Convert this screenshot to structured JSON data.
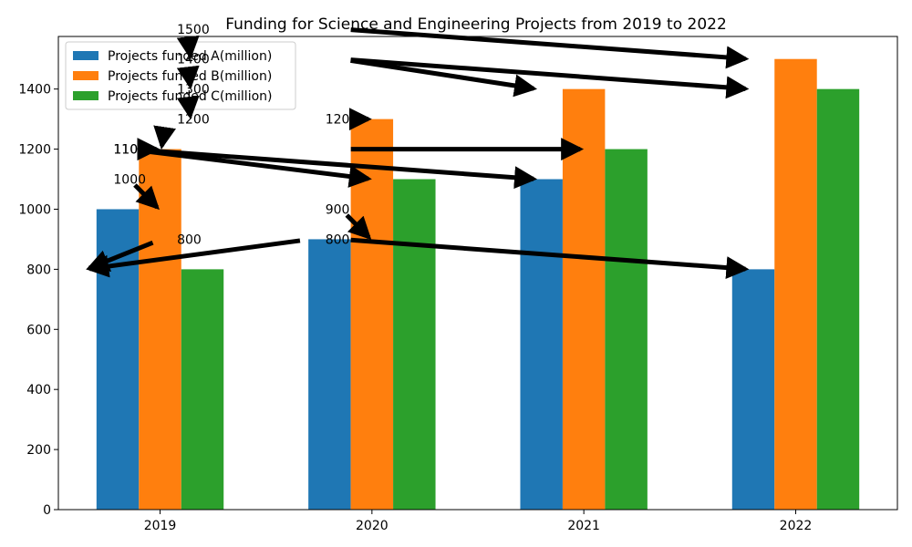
{
  "chart_data": {
    "type": "bar",
    "title": "Funding for Science and Engineering Projects from 2019 to 2022",
    "xlabel": "",
    "ylabel": "",
    "categories": [
      "2019",
      "2020",
      "2021",
      "2022"
    ],
    "series": [
      {
        "name": "Projects funded A(million)",
        "values": [
          1000,
          900,
          1100,
          800
        ],
        "color": "#1f77b4"
      },
      {
        "name": "Projects funded B(million)",
        "values": [
          1200,
          1300,
          1400,
          1500
        ],
        "color": "#ff7f0e"
      },
      {
        "name": "Projects funded C(million)",
        "values": [
          800,
          1100,
          1200,
          1400
        ],
        "color": "#2ca02c"
      }
    ],
    "ylim": [
      0,
      1575
    ],
    "yticks": [
      0,
      200,
      400,
      600,
      800,
      1000,
      1200,
      1400
    ],
    "grid": false,
    "legend_position": "top-left",
    "annotations": [
      {
        "label": "800",
        "label_at": [
          0.08,
          900
        ],
        "arrow_to": [
          -0.35,
          800
        ]
      },
      {
        "label": "1000",
        "label_at": [
          -0.22,
          1100
        ],
        "arrow_to": [
          0.0,
          1000
        ]
      },
      {
        "label": "1100",
        "label_at": [
          -0.22,
          1200
        ],
        "arrow_to": [
          0.0,
          1200
        ]
      },
      {
        "label": "1200",
        "label_at": [
          0.08,
          1300
        ],
        "arrow_to": [
          0.0,
          1200
        ]
      },
      {
        "label": "1300",
        "label_at": [
          0.08,
          1400
        ],
        "arrow_to": [
          0.15,
          1300
        ]
      },
      {
        "label": "1400",
        "label_at": [
          0.08,
          1500
        ],
        "arrow_to": [
          0.15,
          1400
        ]
      },
      {
        "label": "1500",
        "label_at": [
          0.08,
          1600
        ],
        "arrow_to": [
          0.15,
          1500
        ]
      },
      {
        "label": "1100",
        "label_at": [
          -0.22,
          1200
        ],
        "arrow_to": [
          1.0,
          1100
        ]
      },
      {
        "label": "1200",
        "label_at": [
          0.78,
          1300
        ],
        "arrow_to": [
          1.0,
          1300
        ]
      },
      {
        "label": "900",
        "label_at": [
          0.78,
          1000
        ],
        "arrow_to": [
          1.0,
          900
        ]
      },
      {
        "label": "800",
        "label_at": [
          0.78,
          900
        ],
        "arrow_to": [
          -0.35,
          800
        ]
      },
      {
        "label": "",
        "label_at": [
          0.78,
          1200
        ],
        "arrow_to": [
          2.0,
          1200
        ]
      },
      {
        "label": "",
        "label_at": [
          0.78,
          1500
        ],
        "arrow_to": [
          1.78,
          1400
        ]
      },
      {
        "label": "",
        "label_at": [
          -0.22,
          1200
        ],
        "arrow_to": [
          1.78,
          1100
        ]
      },
      {
        "label": "",
        "label_at": [
          0.78,
          1600
        ],
        "arrow_to": [
          2.78,
          1500
        ]
      },
      {
        "label": "",
        "label_at": [
          0.78,
          1500
        ],
        "arrow_to": [
          2.78,
          1400
        ]
      },
      {
        "label": "",
        "label_at": [
          0.78,
          900
        ],
        "arrow_to": [
          2.78,
          800
        ]
      }
    ]
  }
}
